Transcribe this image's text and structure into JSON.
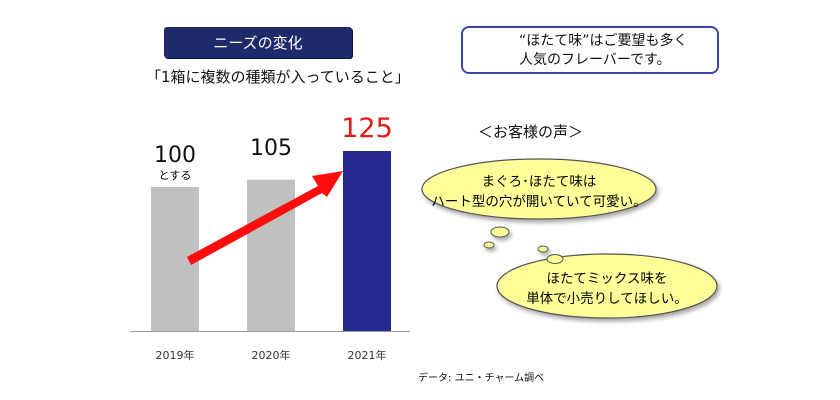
{
  "header": {
    "title": "ニーズの変化",
    "subtitle": "「1箱に複数の種類が入っていること」"
  },
  "callout": {
    "line1": "“ほたて味”はご要望も多く",
    "line2": "人気のフレーバーです。"
  },
  "voices": {
    "title": "＜お客様の声＞",
    "bubbles": [
      {
        "line1": "まぐろ･ほたて味は",
        "line2": "ハート型の穴が開いていて可愛い。"
      },
      {
        "line1": "ほたてミックス味を",
        "line2": "単体で小売りしてほしい。"
      }
    ]
  },
  "source": "データ: ユニ・チャーム調べ",
  "chart_data": {
    "type": "bar",
    "categories": [
      "2019年",
      "2020年",
      "2021年"
    ],
    "values": [
      100,
      105,
      125
    ],
    "value_labels": [
      "100",
      "105",
      "125"
    ],
    "base_note": "とする",
    "colors": [
      "#c0c0c0",
      "#c0c0c0",
      "#262a8e"
    ],
    "highlight_label_color": "#e61919",
    "arrow_color": "#ff0d0d",
    "ylim": [
      0,
      150
    ],
    "title": "",
    "xlabel": "",
    "ylabel": "",
    "grid": false
  }
}
